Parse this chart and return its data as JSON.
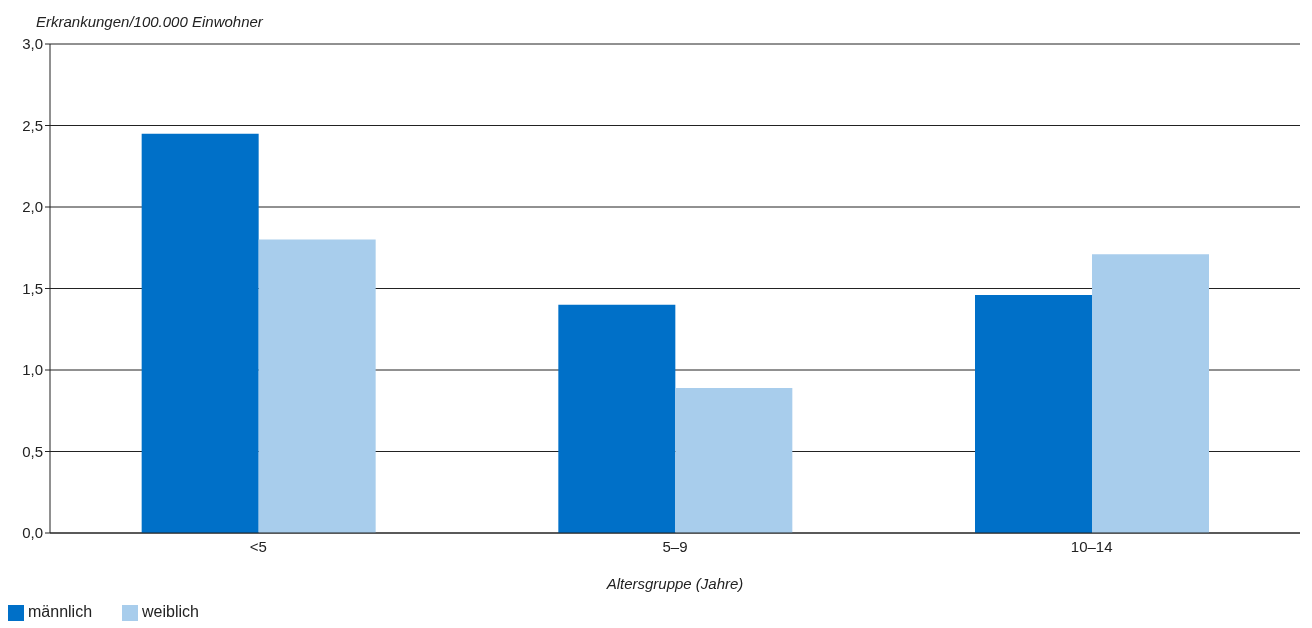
{
  "chart_data": {
    "type": "bar",
    "ylabel": "Erkrankungen/100.000 Einwohner",
    "xlabel": "Altersgruppe (Jahre)",
    "categories": [
      "<5",
      "5–9",
      "10–14"
    ],
    "series": [
      {
        "name": "männlich",
        "color": "#0070c8",
        "values": [
          2.45,
          1.4,
          1.46
        ]
      },
      {
        "name": "weiblich",
        "color": "#a8cdec",
        "values": [
          1.8,
          0.89,
          1.71
        ]
      }
    ],
    "ylim": [
      0,
      3
    ],
    "yticks": [
      {
        "value": 0,
        "label": "0,0"
      },
      {
        "value": 0.5,
        "label": "0,5"
      },
      {
        "value": 1,
        "label": "1,0"
      },
      {
        "value": 1.5,
        "label": "1,5"
      },
      {
        "value": 2,
        "label": "2,0"
      },
      {
        "value": 2.5,
        "label": "2,5"
      },
      {
        "value": 3,
        "label": "3,0"
      }
    ],
    "grid": "y",
    "legend": "bottom left"
  }
}
